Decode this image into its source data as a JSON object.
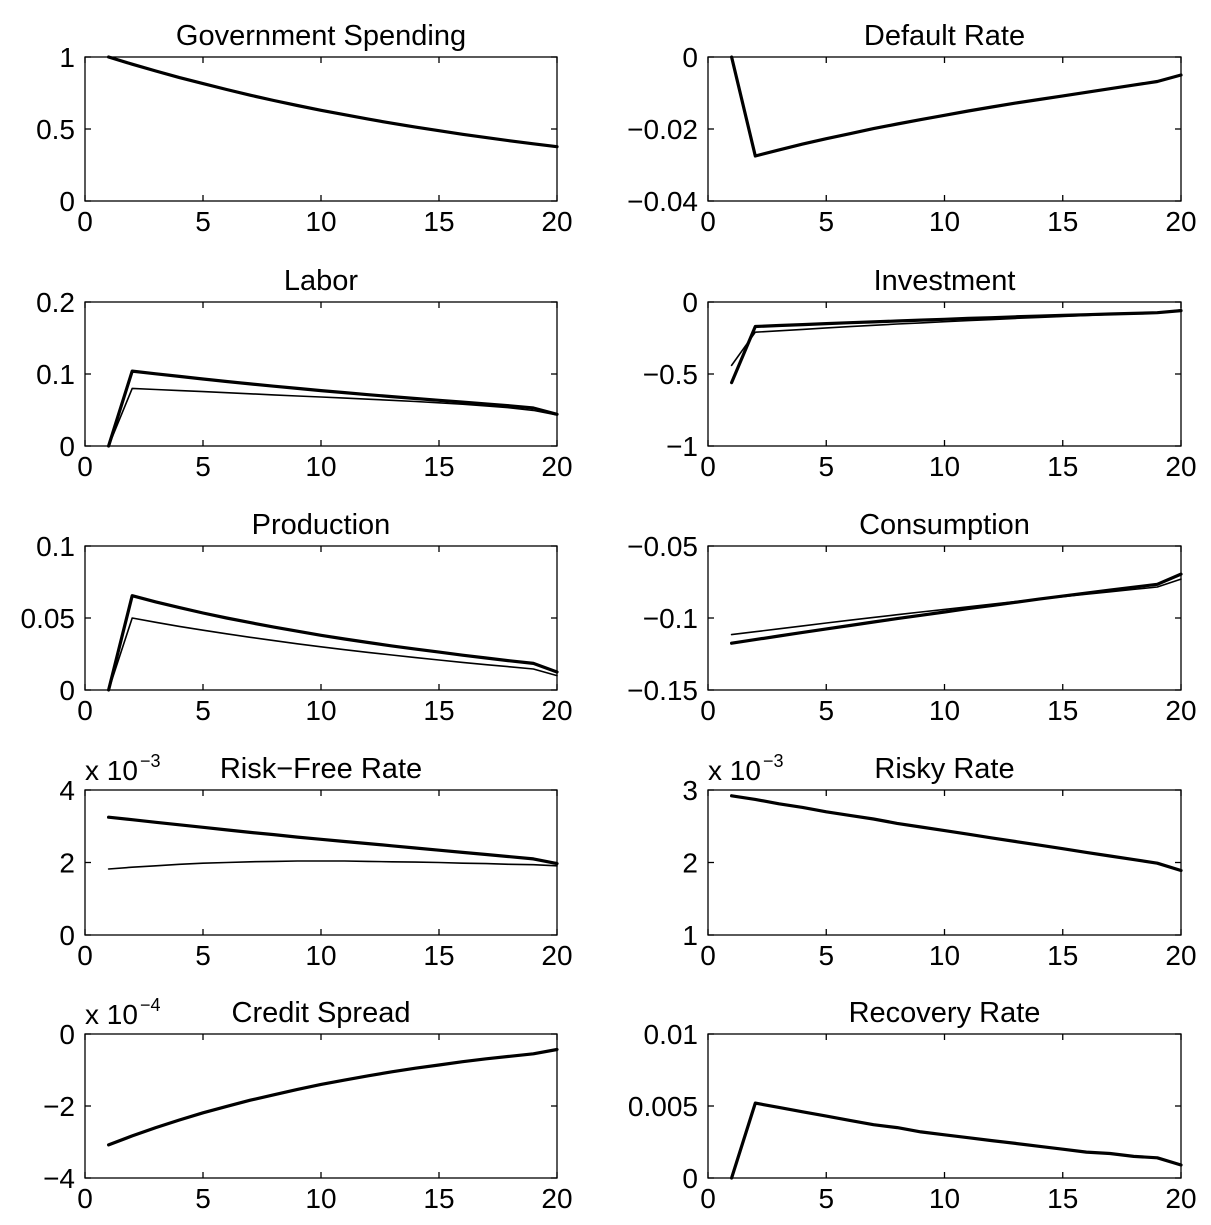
{
  "chart_data": [
    {
      "type": "line",
      "title": "Government Spending",
      "xlim": [
        0,
        20
      ],
      "ylim": [
        0,
        1
      ],
      "xticks": [
        "0",
        "5",
        "10",
        "15",
        "20"
      ],
      "yticks": [
        "0",
        "0.5",
        "1"
      ],
      "series": [
        {
          "style": "thick",
          "x": [
            1,
            2,
            3,
            4,
            5,
            6,
            7,
            8,
            9,
            10,
            11,
            12,
            13,
            14,
            15,
            16,
            17,
            18,
            19,
            20
          ],
          "values": [
            1,
            0.95,
            0.9025,
            0.857,
            0.815,
            0.774,
            0.735,
            0.698,
            0.663,
            0.63,
            0.599,
            0.569,
            0.54,
            0.513,
            0.488,
            0.463,
            0.44,
            0.418,
            0.397,
            0.377
          ]
        }
      ]
    },
    {
      "type": "line",
      "title": "Default Rate",
      "xlim": [
        0,
        20
      ],
      "ylim": [
        -0.04,
        0
      ],
      "xticks": [
        "0",
        "5",
        "10",
        "15",
        "20"
      ],
      "yticks": [
        "−0.04",
        "−0.02",
        "0"
      ],
      "series": [
        {
          "style": "thick",
          "x": [
            1,
            2,
            3,
            4,
            5,
            6,
            7,
            8,
            9,
            10,
            11,
            12,
            13,
            14,
            15,
            16,
            17,
            18,
            19,
            20
          ],
          "values": [
            0,
            -0.0275,
            -0.0258,
            -0.0242,
            -0.0227,
            -0.0213,
            -0.0199,
            -0.0186,
            -0.0174,
            -0.0162,
            -0.015,
            -0.0139,
            -0.0128,
            -0.0118,
            -0.0108,
            -0.0098,
            -0.0088,
            -0.0078,
            -0.0068,
            -0.005
          ]
        }
      ]
    },
    {
      "type": "line",
      "title": "Labor",
      "xlim": [
        0,
        20
      ],
      "ylim": [
        0,
        0.2
      ],
      "xticks": [
        "0",
        "5",
        "10",
        "15",
        "20"
      ],
      "yticks": [
        "0",
        "0.1",
        "0.2"
      ],
      "series": [
        {
          "style": "thick",
          "x": [
            1,
            2,
            3,
            4,
            5,
            6,
            7,
            8,
            9,
            10,
            11,
            12,
            13,
            14,
            15,
            16,
            17,
            18,
            19,
            20
          ],
          "values": [
            0,
            0.104,
            0.1003,
            0.0966,
            0.093,
            0.0896,
            0.0863,
            0.0831,
            0.08,
            0.077,
            0.0741,
            0.0713,
            0.0686,
            0.066,
            0.0635,
            0.061,
            0.0584,
            0.0558,
            0.0528,
            0.044
          ]
        },
        {
          "style": "thin",
          "x": [
            1,
            2,
            3,
            4,
            5,
            6,
            7,
            8,
            9,
            10,
            11,
            12,
            13,
            14,
            15,
            16,
            17,
            18,
            19,
            20
          ],
          "values": [
            0,
            0.08,
            0.0785,
            0.077,
            0.0755,
            0.074,
            0.0725,
            0.071,
            0.0695,
            0.068,
            0.0665,
            0.065,
            0.0635,
            0.0618,
            0.06,
            0.058,
            0.0557,
            0.053,
            0.0495,
            0.043
          ]
        }
      ]
    },
    {
      "type": "line",
      "title": "Investment",
      "xlim": [
        0,
        20
      ],
      "ylim": [
        -1,
        0
      ],
      "xticks": [
        "0",
        "5",
        "10",
        "15",
        "20"
      ],
      "yticks": [
        "−1",
        "−0.5",
        "0"
      ],
      "series": [
        {
          "style": "thick",
          "x": [
            1,
            2,
            3,
            4,
            5,
            6,
            7,
            8,
            9,
            10,
            11,
            12,
            13,
            14,
            15,
            16,
            17,
            18,
            19,
            20
          ],
          "values": [
            -0.56,
            -0.17,
            -0.163,
            -0.157,
            -0.15,
            -0.144,
            -0.138,
            -0.132,
            -0.126,
            -0.12,
            -0.114,
            -0.109,
            -0.103,
            -0.098,
            -0.093,
            -0.088,
            -0.083,
            -0.079,
            -0.074,
            -0.06
          ]
        },
        {
          "style": "thin",
          "x": [
            1,
            2,
            3,
            4,
            5,
            6,
            7,
            8,
            9,
            10,
            11,
            12,
            13,
            14,
            15,
            16,
            17,
            18,
            19,
            20
          ],
          "values": [
            -0.44,
            -0.21,
            -0.2,
            -0.19,
            -0.18,
            -0.171,
            -0.162,
            -0.153,
            -0.145,
            -0.137,
            -0.129,
            -0.122,
            -0.114,
            -0.107,
            -0.1,
            -0.093,
            -0.087,
            -0.08,
            -0.074,
            -0.055
          ]
        }
      ]
    },
    {
      "type": "line",
      "title": "Production",
      "xlim": [
        0,
        20
      ],
      "ylim": [
        0,
        0.1
      ],
      "xticks": [
        "0",
        "5",
        "10",
        "15",
        "20"
      ],
      "yticks": [
        "0",
        "0.05",
        "0.1"
      ],
      "series": [
        {
          "style": "thick",
          "x": [
            1,
            2,
            3,
            4,
            5,
            6,
            7,
            8,
            9,
            10,
            11,
            12,
            13,
            14,
            15,
            16,
            17,
            18,
            19,
            20
          ],
          "values": [
            0,
            0.0655,
            0.0612,
            0.0572,
            0.0535,
            0.05,
            0.0468,
            0.0437,
            0.0408,
            0.038,
            0.0354,
            0.033,
            0.0306,
            0.0284,
            0.0263,
            0.0242,
            0.0222,
            0.0203,
            0.0185,
            0.0125
          ]
        },
        {
          "style": "thin",
          "x": [
            1,
            2,
            3,
            4,
            5,
            6,
            7,
            8,
            9,
            10,
            11,
            12,
            13,
            14,
            15,
            16,
            17,
            18,
            19,
            20
          ],
          "values": [
            0,
            0.05,
            0.047,
            0.0442,
            0.0415,
            0.039,
            0.0366,
            0.0343,
            0.0321,
            0.03,
            0.028,
            0.0261,
            0.0243,
            0.0225,
            0.0208,
            0.0192,
            0.0176,
            0.0161,
            0.0146,
            0.01
          ]
        }
      ]
    },
    {
      "type": "line",
      "title": "Consumption",
      "xlim": [
        0,
        20
      ],
      "ylim": [
        -0.15,
        -0.05
      ],
      "xticks": [
        "0",
        "5",
        "10",
        "15",
        "20"
      ],
      "yticks": [
        "−0.15",
        "−0.1",
        "−0.05"
      ],
      "series": [
        {
          "style": "thick",
          "x": [
            1,
            2,
            3,
            4,
            5,
            6,
            7,
            8,
            9,
            10,
            11,
            12,
            13,
            14,
            15,
            16,
            17,
            18,
            19,
            20
          ],
          "values": [
            -0.1175,
            -0.115,
            -0.1125,
            -0.11,
            -0.1076,
            -0.1052,
            -0.1028,
            -0.1004,
            -0.0981,
            -0.0958,
            -0.0935,
            -0.0913,
            -0.0891,
            -0.0869,
            -0.0848,
            -0.0827,
            -0.0806,
            -0.0786,
            -0.0766,
            -0.0695
          ]
        },
        {
          "style": "thin",
          "x": [
            1,
            2,
            3,
            4,
            5,
            6,
            7,
            8,
            9,
            10,
            11,
            12,
            13,
            14,
            15,
            16,
            17,
            18,
            19,
            20
          ],
          "values": [
            -0.1115,
            -0.1095,
            -0.1075,
            -0.1055,
            -0.1035,
            -0.1015,
            -0.0996,
            -0.0977,
            -0.0958,
            -0.094,
            -0.0922,
            -0.0904,
            -0.0886,
            -0.0869,
            -0.0852,
            -0.0835,
            -0.0818,
            -0.0801,
            -0.0785,
            -0.073
          ]
        }
      ]
    },
    {
      "type": "line",
      "title": "Risk−Free Rate",
      "exponent_label": "x 10",
      "exponent": "−3",
      "xlim": [
        0,
        20
      ],
      "ylim": [
        0,
        4
      ],
      "xticks": [
        "0",
        "5",
        "10",
        "15",
        "20"
      ],
      "yticks": [
        "0",
        "2",
        "4"
      ],
      "series": [
        {
          "style": "thick",
          "x": [
            1,
            2,
            3,
            4,
            5,
            6,
            7,
            8,
            9,
            10,
            11,
            12,
            13,
            14,
            15,
            16,
            17,
            18,
            19,
            20
          ],
          "values": [
            3.25,
            3.18,
            3.11,
            3.04,
            2.97,
            2.9,
            2.83,
            2.77,
            2.7,
            2.64,
            2.58,
            2.52,
            2.46,
            2.4,
            2.34,
            2.28,
            2.22,
            2.16,
            2.1,
            1.97
          ]
        },
        {
          "style": "thin",
          "x": [
            1,
            2,
            3,
            4,
            5,
            6,
            7,
            8,
            9,
            10,
            11,
            12,
            13,
            14,
            15,
            16,
            17,
            18,
            19,
            20
          ],
          "values": [
            1.82,
            1.87,
            1.91,
            1.95,
            1.98,
            2.0,
            2.02,
            2.03,
            2.04,
            2.04,
            2.04,
            2.03,
            2.02,
            2.01,
            2.0,
            1.98,
            1.97,
            1.95,
            1.94,
            1.91
          ]
        }
      ]
    },
    {
      "type": "line",
      "title": "Risky Rate",
      "exponent_label": "x 10",
      "exponent": "−3",
      "xlim": [
        0,
        20
      ],
      "ylim": [
        1,
        3
      ],
      "xticks": [
        "0",
        "5",
        "10",
        "15",
        "20"
      ],
      "yticks": [
        "1",
        "2",
        "3"
      ],
      "series": [
        {
          "style": "thick",
          "x": [
            1,
            2,
            3,
            4,
            5,
            6,
            7,
            8,
            9,
            10,
            11,
            12,
            13,
            14,
            15,
            16,
            17,
            18,
            19,
            20
          ],
          "values": [
            2.92,
            2.87,
            2.81,
            2.76,
            2.7,
            2.65,
            2.6,
            2.54,
            2.49,
            2.44,
            2.39,
            2.34,
            2.29,
            2.24,
            2.19,
            2.14,
            2.09,
            2.04,
            1.99,
            1.89
          ]
        }
      ]
    },
    {
      "type": "line",
      "title": "Credit Spread",
      "exponent_label": "x 10",
      "exponent": "−4",
      "xlim": [
        0,
        20
      ],
      "ylim": [
        -4,
        0
      ],
      "xticks": [
        "0",
        "5",
        "10",
        "15",
        "20"
      ],
      "yticks": [
        "−4",
        "−2",
        "0"
      ],
      "series": [
        {
          "style": "thick",
          "x": [
            1,
            2,
            3,
            4,
            5,
            6,
            7,
            8,
            9,
            10,
            11,
            12,
            13,
            14,
            15,
            16,
            17,
            18,
            19,
            20
          ],
          "values": [
            -3.08,
            -2.83,
            -2.6,
            -2.39,
            -2.19,
            -2.01,
            -1.84,
            -1.69,
            -1.54,
            -1.4,
            -1.28,
            -1.16,
            -1.05,
            -0.95,
            -0.86,
            -0.77,
            -0.69,
            -0.62,
            -0.55,
            -0.43
          ]
        }
      ]
    },
    {
      "type": "line",
      "title": "Recovery Rate",
      "xlim": [
        0,
        20
      ],
      "ylim": [
        0,
        0.01
      ],
      "xticks": [
        "0",
        "5",
        "10",
        "15",
        "20"
      ],
      "yticks": [
        "0",
        "0.005",
        "0.01"
      ],
      "series": [
        {
          "style": "thick",
          "x": [
            1,
            2,
            3,
            4,
            5,
            6,
            7,
            8,
            9,
            10,
            11,
            12,
            13,
            14,
            15,
            16,
            17,
            18,
            19,
            20
          ],
          "values": [
            0,
            0.0052,
            0.0049,
            0.0046,
            0.0043,
            0.004,
            0.0037,
            0.0035,
            0.0032,
            0.003,
            0.0028,
            0.0026,
            0.0024,
            0.0022,
            0.002,
            0.0018,
            0.0017,
            0.0015,
            0.0014,
            0.0009
          ]
        }
      ]
    }
  ]
}
